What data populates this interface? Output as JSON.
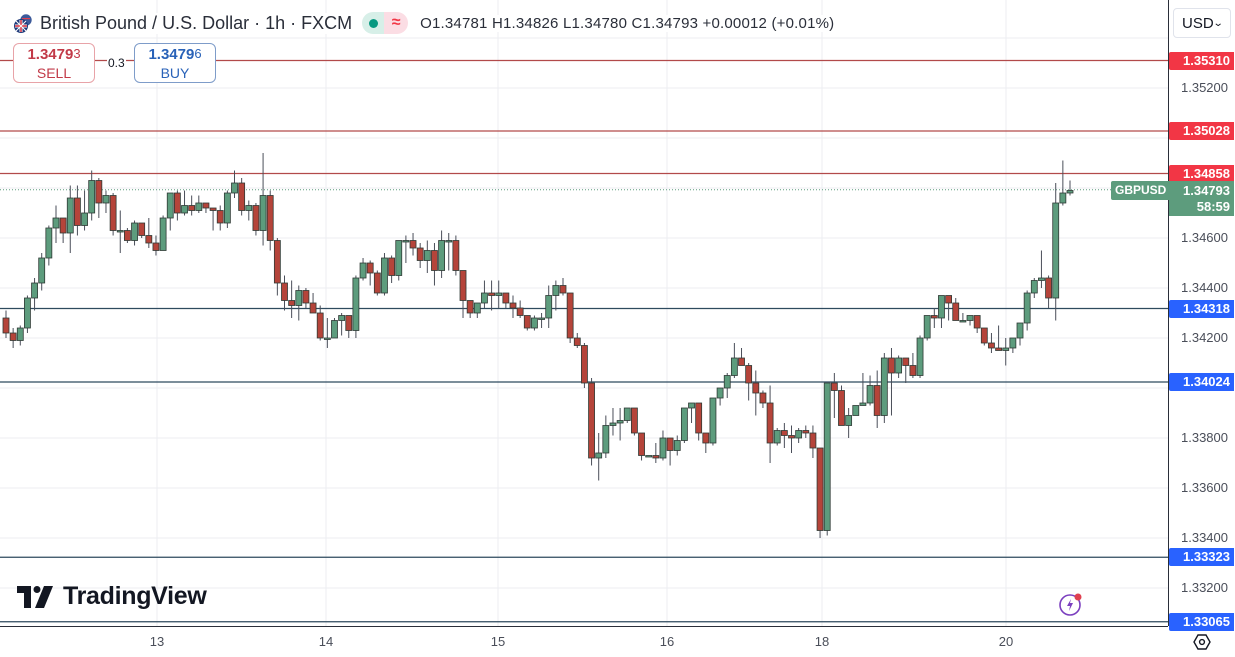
{
  "header": {
    "title": "British Pound / U.S. Dollar · 1h · FXCM",
    "market_status": "market-open",
    "ohlc_text": "O1.34781 H1.34826 L1.34780 C1.34793 +0.00012 (+0.01%)",
    "open": "1.34781",
    "high": "1.34826",
    "low": "1.34780",
    "close": "1.34793",
    "change": "+0.00012",
    "change_pct": "(+0.01%)"
  },
  "trade": {
    "sell_price_main": "1.3479",
    "sell_price_pip": "3",
    "sell_label": "SELL",
    "spread": "0.3",
    "buy_price_main": "1.3479",
    "buy_price_pip": "6",
    "buy_label": "BUY"
  },
  "price_axis": {
    "currency": "USD",
    "ticks": [
      "1.35200",
      "1.34600",
      "1.34400",
      "1.34200",
      "1.33800",
      "1.33600",
      "1.33400",
      "1.33200"
    ],
    "current_symbol": "GBPUSD",
    "current_price": "1.34793",
    "countdown": "58:59"
  },
  "time_axis": {
    "ticks": [
      "13",
      "14",
      "15",
      "16",
      "18",
      "20"
    ]
  },
  "branding": {
    "logo_text": "TradingView"
  },
  "colors": {
    "up": "#5d9c7d",
    "down": "#b5443a",
    "resistance": "#b24a4a",
    "support": "#2e4a5e",
    "resistance_label": "#f23645",
    "support_label": "#2962ff",
    "current": "#5d9c7d"
  },
  "chart_data": {
    "type": "candlestick",
    "title": "British Pound / U.S. Dollar · 1h · FXCM",
    "xlabel": "",
    "ylabel": "USD",
    "ylim": [
      1.3298,
      1.3555
    ],
    "grid": true,
    "x_ticks": [
      "13",
      "14",
      "15",
      "16",
      "18",
      "20"
    ],
    "horizontal_lines": [
      {
        "price": 1.3531,
        "label": "1.35310",
        "kind": "resistance"
      },
      {
        "price": 1.35028,
        "label": "1.35028",
        "kind": "resistance"
      },
      {
        "price": 1.34858,
        "label": "1.34858",
        "kind": "resistance"
      },
      {
        "price": 1.34318,
        "label": "1.34318",
        "kind": "support"
      },
      {
        "price": 1.34024,
        "label": "1.34024",
        "kind": "support"
      },
      {
        "price": 1.33323,
        "label": "1.33323",
        "kind": "support"
      },
      {
        "price": 1.33065,
        "label": "1.33065",
        "kind": "support"
      }
    ],
    "last_price": 1.34793,
    "candles_ohlc": [
      [
        1.3428,
        1.3431,
        1.342,
        1.3422
      ],
      [
        1.3422,
        1.3424,
        1.3416,
        1.3419
      ],
      [
        1.3419,
        1.3425,
        1.3417,
        1.3424
      ],
      [
        1.3424,
        1.3437,
        1.3422,
        1.3436
      ],
      [
        1.3436,
        1.3444,
        1.3431,
        1.3442
      ],
      [
        1.3442,
        1.3454,
        1.3439,
        1.3452
      ],
      [
        1.3452,
        1.3465,
        1.3449,
        1.3464
      ],
      [
        1.3464,
        1.3473,
        1.3458,
        1.3468
      ],
      [
        1.3468,
        1.3466,
        1.3458,
        1.3462
      ],
      [
        1.3462,
        1.3481,
        1.3454,
        1.3476
      ],
      [
        1.3476,
        1.3481,
        1.3461,
        1.3465
      ],
      [
        1.3465,
        1.3479,
        1.3463,
        1.347
      ],
      [
        1.347,
        1.3487,
        1.3467,
        1.3483
      ],
      [
        1.3483,
        1.3484,
        1.3468,
        1.3474
      ],
      [
        1.3474,
        1.3479,
        1.347,
        1.3477
      ],
      [
        1.3477,
        1.3478,
        1.3461,
        1.3463
      ],
      [
        1.3463,
        1.3471,
        1.3454,
        1.3463
      ],
      [
        1.3463,
        1.3464,
        1.3458,
        1.3459
      ],
      [
        1.3459,
        1.3467,
        1.3457,
        1.3466
      ],
      [
        1.3466,
        1.3465,
        1.346,
        1.3461
      ],
      [
        1.3461,
        1.3468,
        1.3456,
        1.3458
      ],
      [
        1.3458,
        1.3461,
        1.3453,
        1.3455
      ],
      [
        1.3455,
        1.3469,
        1.3455,
        1.3468
      ],
      [
        1.3468,
        1.3478,
        1.3463,
        1.3478
      ],
      [
        1.3478,
        1.3479,
        1.3467,
        1.347
      ],
      [
        1.347,
        1.3479,
        1.3469,
        1.3473
      ],
      [
        1.3473,
        1.3477,
        1.3469,
        1.3471
      ],
      [
        1.3471,
        1.3477,
        1.347,
        1.3474
      ],
      [
        1.3474,
        1.3474,
        1.347,
        1.3472
      ],
      [
        1.3472,
        1.3472,
        1.3463,
        1.3471
      ],
      [
        1.3471,
        1.3473,
        1.3463,
        1.3466
      ],
      [
        1.3466,
        1.3479,
        1.3464,
        1.3478
      ],
      [
        1.3478,
        1.3487,
        1.3476,
        1.3482
      ],
      [
        1.3482,
        1.3484,
        1.3469,
        1.3471
      ],
      [
        1.3471,
        1.3475,
        1.3467,
        1.3473
      ],
      [
        1.3473,
        1.3474,
        1.3461,
        1.3463
      ],
      [
        1.3463,
        1.3494,
        1.3457,
        1.3477
      ],
      [
        1.3477,
        1.3479,
        1.3455,
        1.3459
      ],
      [
        1.3459,
        1.346,
        1.3437,
        1.3442
      ],
      [
        1.3442,
        1.3445,
        1.3431,
        1.3435
      ],
      [
        1.3435,
        1.3443,
        1.3428,
        1.3433
      ],
      [
        1.3433,
        1.3441,
        1.3427,
        1.3439
      ],
      [
        1.3439,
        1.344,
        1.3432,
        1.3434
      ],
      [
        1.3434,
        1.3438,
        1.343,
        1.343
      ],
      [
        1.343,
        1.3433,
        1.3419,
        1.342
      ],
      [
        1.342,
        1.3428,
        1.3416,
        1.342
      ],
      [
        1.342,
        1.3428,
        1.3421,
        1.3427
      ],
      [
        1.3427,
        1.343,
        1.3421,
        1.3429
      ],
      [
        1.3429,
        1.3429,
        1.342,
        1.3423
      ],
      [
        1.3423,
        1.3445,
        1.342,
        1.3444
      ],
      [
        1.3444,
        1.3452,
        1.3443,
        1.345
      ],
      [
        1.345,
        1.3451,
        1.3441,
        1.3446
      ],
      [
        1.3446,
        1.3447,
        1.3437,
        1.3438
      ],
      [
        1.3438,
        1.3454,
        1.3437,
        1.3452
      ],
      [
        1.3452,
        1.3453,
        1.3442,
        1.3445
      ],
      [
        1.3445,
        1.3456,
        1.3443,
        1.3459
      ],
      [
        1.3459,
        1.3461,
        1.345,
        1.3459
      ],
      [
        1.3459,
        1.3462,
        1.3453,
        1.3456
      ],
      [
        1.3456,
        1.3458,
        1.3448,
        1.3451
      ],
      [
        1.3451,
        1.3459,
        1.3446,
        1.3455
      ],
      [
        1.3455,
        1.3458,
        1.3441,
        1.3447
      ],
      [
        1.3447,
        1.3463,
        1.3444,
        1.3459
      ],
      [
        1.3459,
        1.3462,
        1.3447,
        1.3459
      ],
      [
        1.3459,
        1.3461,
        1.3445,
        1.3447
      ],
      [
        1.3447,
        1.3441,
        1.3428,
        1.3435
      ],
      [
        1.3435,
        1.3435,
        1.3428,
        1.343
      ],
      [
        1.343,
        1.3433,
        1.3428,
        1.3434
      ],
      [
        1.3434,
        1.3443,
        1.3432,
        1.3438
      ],
      [
        1.3438,
        1.3443,
        1.3431,
        1.3437
      ],
      [
        1.3437,
        1.3443,
        1.3432,
        1.3438
      ],
      [
        1.3438,
        1.3438,
        1.3432,
        1.3434
      ],
      [
        1.3434,
        1.3437,
        1.3428,
        1.3432
      ],
      [
        1.3432,
        1.3435,
        1.3428,
        1.3429
      ],
      [
        1.3429,
        1.3429,
        1.3423,
        1.3424
      ],
      [
        1.3424,
        1.3429,
        1.3423,
        1.3428
      ],
      [
        1.3428,
        1.343,
        1.3424,
        1.3428
      ],
      [
        1.3428,
        1.3441,
        1.3424,
        1.3437
      ],
      [
        1.3437,
        1.3443,
        1.3431,
        1.3441
      ],
      [
        1.3441,
        1.3444,
        1.3437,
        1.3438
      ],
      [
        1.3438,
        1.3434,
        1.3418,
        1.342
      ],
      [
        1.342,
        1.3422,
        1.3416,
        1.3417
      ],
      [
        1.3417,
        1.3418,
        1.34,
        1.3402
      ],
      [
        1.3402,
        1.3404,
        1.3369,
        1.3372
      ],
      [
        1.3372,
        1.3382,
        1.3363,
        1.3374
      ],
      [
        1.3374,
        1.3389,
        1.3372,
        1.3385
      ],
      [
        1.3385,
        1.3392,
        1.3381,
        1.3386
      ],
      [
        1.3386,
        1.3392,
        1.3379,
        1.3387
      ],
      [
        1.3387,
        1.3391,
        1.3386,
        1.3392
      ],
      [
        1.3392,
        1.3392,
        1.3381,
        1.3382
      ],
      [
        1.3382,
        1.3382,
        1.3371,
        1.3373
      ],
      [
        1.3373,
        1.3373,
        1.3373,
        1.3373
      ],
      [
        1.3373,
        1.3378,
        1.337,
        1.3372
      ],
      [
        1.3372,
        1.3383,
        1.3371,
        1.338
      ],
      [
        1.338,
        1.3376,
        1.3369,
        1.3375
      ],
      [
        1.3375,
        1.3381,
        1.3373,
        1.3379
      ],
      [
        1.3379,
        1.3389,
        1.3378,
        1.3392
      ],
      [
        1.3392,
        1.3392,
        1.3386,
        1.3394
      ],
      [
        1.3394,
        1.3391,
        1.3379,
        1.3382
      ],
      [
        1.3382,
        1.3379,
        1.3374,
        1.3378
      ],
      [
        1.3378,
        1.3393,
        1.3377,
        1.3396
      ],
      [
        1.3396,
        1.3399,
        1.3393,
        1.34
      ],
      [
        1.34,
        1.3406,
        1.3396,
        1.3405
      ],
      [
        1.3405,
        1.3418,
        1.3404,
        1.3412
      ],
      [
        1.3412,
        1.3416,
        1.3409,
        1.3409
      ],
      [
        1.3409,
        1.341,
        1.3395,
        1.3402
      ],
      [
        1.3402,
        1.3407,
        1.3389,
        1.3398
      ],
      [
        1.3398,
        1.3399,
        1.3392,
        1.3394
      ],
      [
        1.3394,
        1.3401,
        1.337,
        1.3378
      ],
      [
        1.3378,
        1.3384,
        1.3377,
        1.3383
      ],
      [
        1.3383,
        1.3386,
        1.3376,
        1.3381
      ],
      [
        1.3381,
        1.3385,
        1.3374,
        1.338
      ],
      [
        1.338,
        1.3384,
        1.3378,
        1.3383
      ],
      [
        1.3383,
        1.3385,
        1.338,
        1.3382
      ],
      [
        1.3382,
        1.3385,
        1.3372,
        1.3376
      ],
      [
        1.3376,
        1.3375,
        1.334,
        1.3343
      ],
      [
        1.3343,
        1.3402,
        1.3341,
        1.3402
      ],
      [
        1.3402,
        1.3406,
        1.3388,
        1.3399
      ],
      [
        1.3399,
        1.3401,
        1.339,
        1.3385
      ],
      [
        1.3385,
        1.3392,
        1.338,
        1.3389
      ],
      [
        1.3389,
        1.3393,
        1.3389,
        1.3393
      ],
      [
        1.3393,
        1.3406,
        1.3393,
        1.3394
      ],
      [
        1.3394,
        1.3405,
        1.3393,
        1.3401
      ],
      [
        1.3401,
        1.3407,
        1.3384,
        1.3389
      ],
      [
        1.3389,
        1.3414,
        1.3386,
        1.3412
      ],
      [
        1.3412,
        1.3416,
        1.3389,
        1.3406
      ],
      [
        1.3406,
        1.3413,
        1.3404,
        1.3412
      ],
      [
        1.3412,
        1.3411,
        1.3402,
        1.3409
      ],
      [
        1.3409,
        1.3414,
        1.3404,
        1.3405
      ],
      [
        1.3405,
        1.3421,
        1.3404,
        1.342
      ],
      [
        1.342,
        1.3428,
        1.3419,
        1.3429
      ],
      [
        1.3429,
        1.3432,
        1.3424,
        1.3428
      ],
      [
        1.3428,
        1.3437,
        1.3424,
        1.3437
      ],
      [
        1.3437,
        1.3436,
        1.3427,
        1.3434
      ],
      [
        1.3434,
        1.3436,
        1.3427,
        1.3427
      ],
      [
        1.3427,
        1.343,
        1.3427,
        1.3427
      ],
      [
        1.3427,
        1.3428,
        1.3425,
        1.3429
      ],
      [
        1.3429,
        1.3428,
        1.3422,
        1.3424
      ],
      [
        1.3424,
        1.3424,
        1.3417,
        1.3418
      ],
      [
        1.3418,
        1.3422,
        1.3414,
        1.3416
      ],
      [
        1.3416,
        1.3425,
        1.3416,
        1.3415
      ],
      [
        1.3415,
        1.342,
        1.3409,
        1.3416
      ],
      [
        1.3416,
        1.3416,
        1.3414,
        1.342
      ],
      [
        1.342,
        1.3425,
        1.3417,
        1.3426
      ],
      [
        1.3426,
        1.3439,
        1.3423,
        1.3438
      ],
      [
        1.3438,
        1.3444,
        1.3436,
        1.3443
      ],
      [
        1.3443,
        1.3455,
        1.344,
        1.3444
      ],
      [
        1.3444,
        1.3445,
        1.3432,
        1.3436
      ],
      [
        1.3436,
        1.3482,
        1.3427,
        1.3474
      ],
      [
        1.3474,
        1.3491,
        1.3473,
        1.3478
      ],
      [
        1.3478,
        1.3483,
        1.3477,
        1.3479
      ]
    ]
  }
}
